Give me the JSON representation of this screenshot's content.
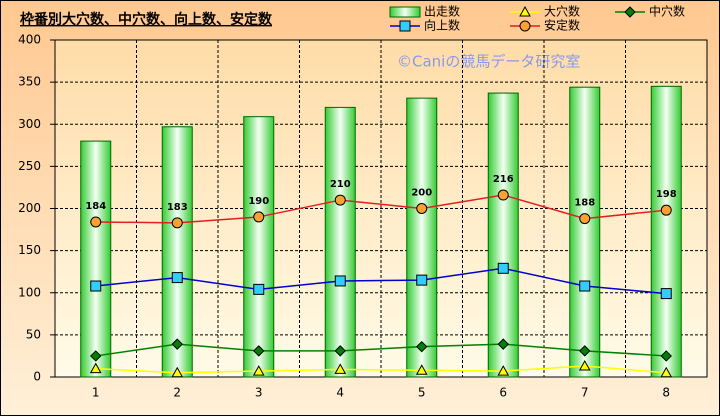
{
  "chart_data": {
    "type": "bar-line",
    "title": "枠番別大穴数、中穴数、向上数、安定数",
    "watermark": "©Caniの競馬データ研究室",
    "categories": [
      "1",
      "2",
      "3",
      "4",
      "5",
      "6",
      "7",
      "8"
    ],
    "ylim": [
      0,
      400
    ],
    "yticks": [
      0,
      50,
      100,
      150,
      200,
      250,
      300,
      350,
      400
    ],
    "grid": true,
    "series": [
      {
        "name": "出走数",
        "type": "bar",
        "color": "#33cc33",
        "values": [
          280,
          297,
          309,
          320,
          331,
          337,
          344,
          345
        ]
      },
      {
        "name": "大穴数",
        "type": "line",
        "marker": "triangle",
        "color": "#ffff00",
        "values": [
          10,
          5,
          7,
          9,
          8,
          7,
          13,
          5
        ]
      },
      {
        "name": "中穴数",
        "type": "line",
        "marker": "diamond",
        "color": "#008000",
        "values": [
          25,
          39,
          31,
          31,
          36,
          39,
          31,
          25
        ]
      },
      {
        "name": "向上数",
        "type": "line",
        "marker": "square",
        "color": "#0000cc",
        "values": [
          108,
          118,
          104,
          114,
          115,
          129,
          108,
          99
        ]
      },
      {
        "name": "安定数",
        "type": "line",
        "marker": "circle",
        "color": "#e02020",
        "data_labels": true,
        "values": [
          184,
          183,
          190,
          210,
          200,
          216,
          188,
          198
        ]
      }
    ]
  }
}
